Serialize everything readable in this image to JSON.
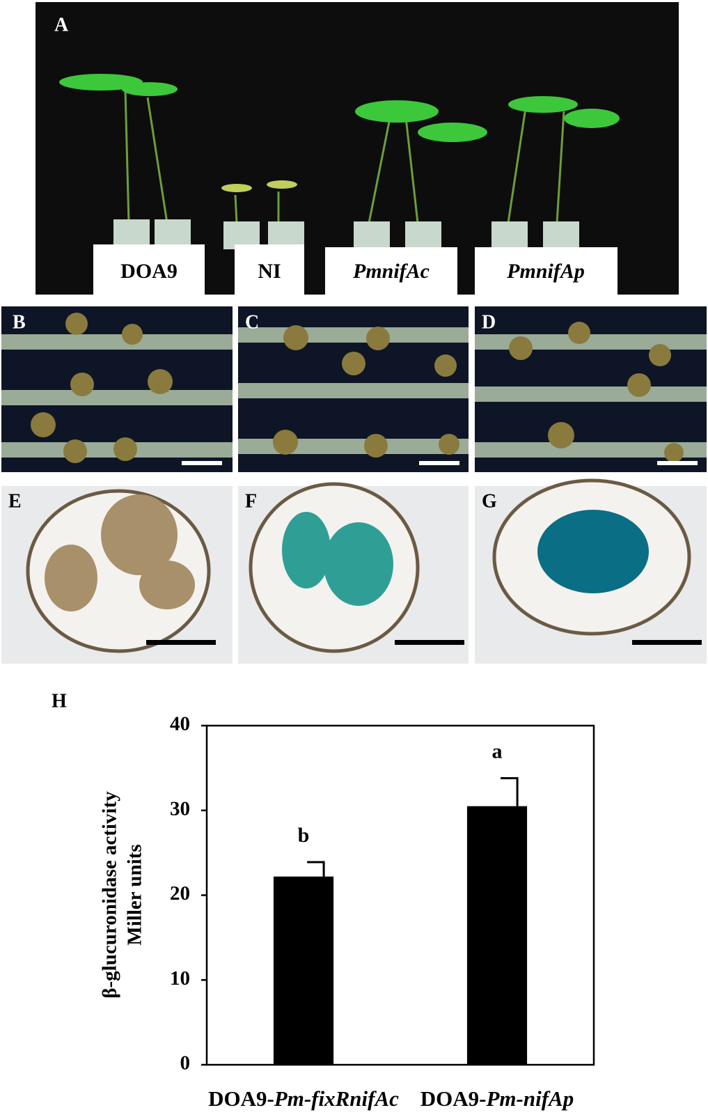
{
  "panels": {
    "A": {
      "letter": "A",
      "labels": [
        "DOA9",
        "NI",
        "PmnifAc",
        "PmnifAp"
      ]
    },
    "letters": [
      "B",
      "C",
      "D",
      "E",
      "F",
      "G"
    ]
  },
  "chart_data": {
    "type": "bar",
    "panel_label": "H",
    "y_label": [
      "β-glucuronidase activity",
      "Miller units"
    ],
    "categories": [
      "DOA9-Pm-fixRnifAc",
      "DOA9-Pm-nifAp"
    ],
    "values": [
      22.2,
      30.5
    ],
    "errors": [
      1.7,
      3.3
    ],
    "value_labels": [
      "b",
      "a"
    ],
    "color": "#000000",
    "ylim": [
      0,
      40
    ],
    "yticks": [
      0,
      10,
      20,
      30,
      40
    ]
  }
}
